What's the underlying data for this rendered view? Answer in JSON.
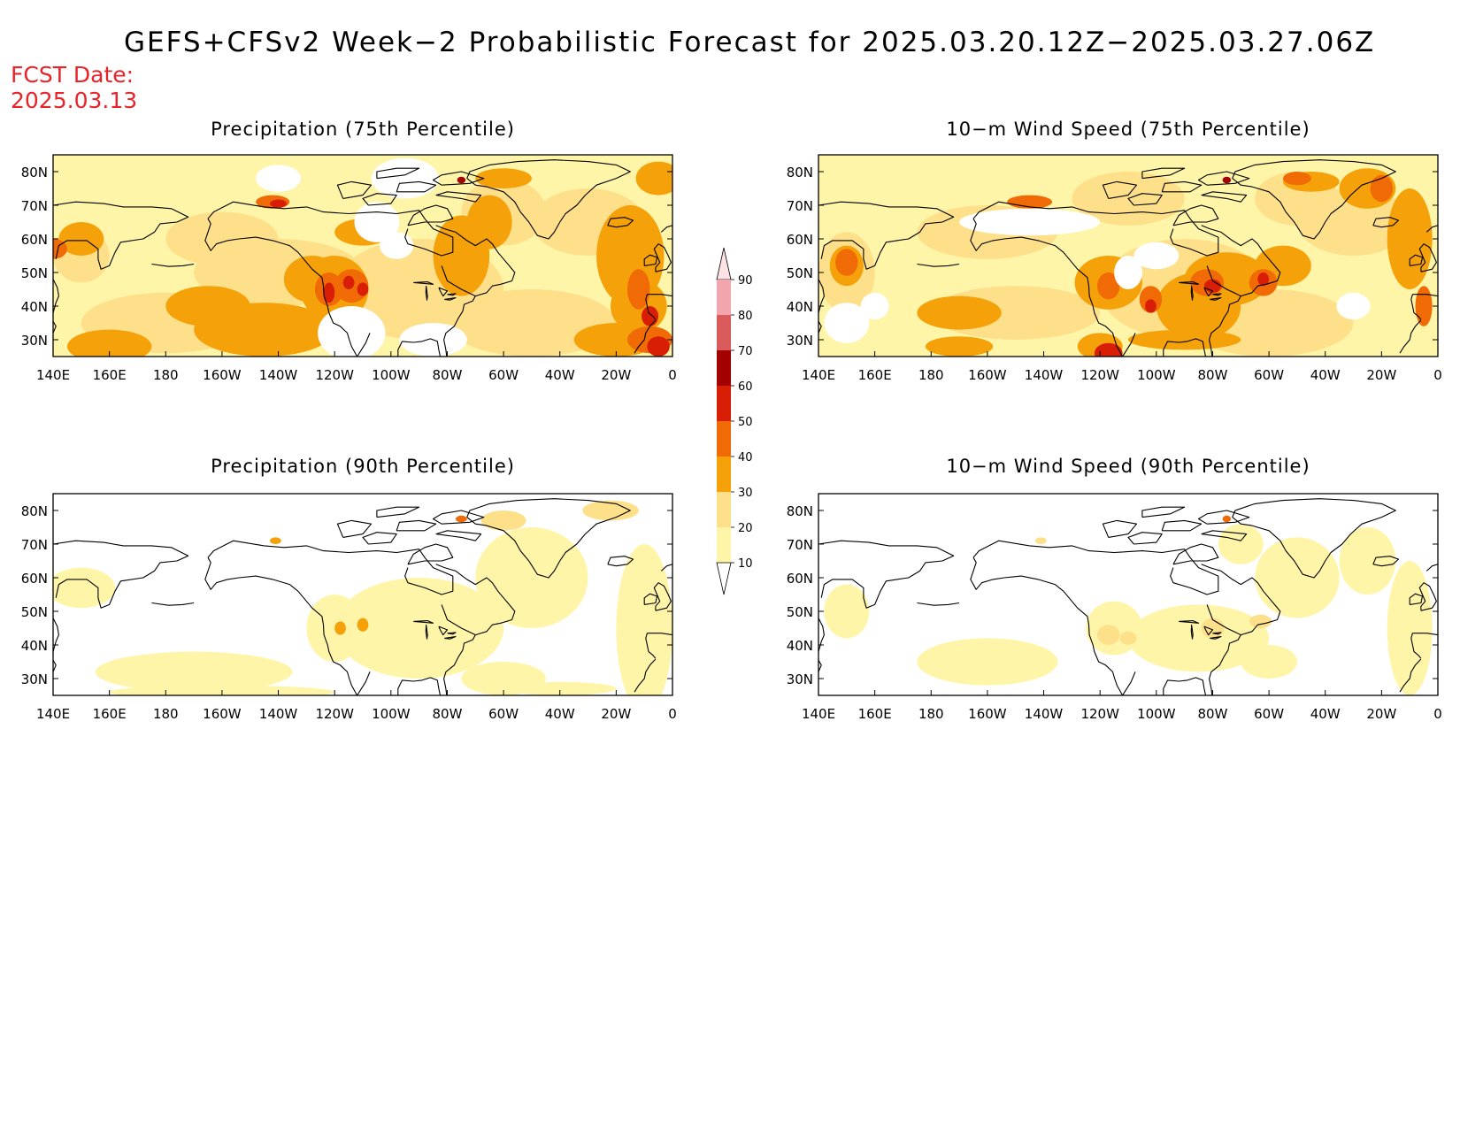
{
  "title": "GEFS+CFSv2 Week−2 Probabilistic Forecast for 2025.03.20.12Z−2025.03.27.06Z",
  "fcst_date": {
    "label": "FCST Date:",
    "value": "2025.03.13"
  },
  "axes": {
    "lon_ticks": [
      "140E",
      "160E",
      "180",
      "160W",
      "140W",
      "120W",
      "100W",
      "80W",
      "60W",
      "40W",
      "20W",
      "0"
    ],
    "lat_ticks": [
      "80N",
      "70N",
      "60N",
      "50N",
      "40N",
      "30N"
    ],
    "lon_range": [
      140,
      360
    ],
    "lat_range": [
      25,
      85
    ]
  },
  "colorbar": {
    "levels": [
      "10",
      "20",
      "30",
      "40",
      "50",
      "60",
      "70",
      "80",
      "90"
    ],
    "colors": [
      "#fff5a8",
      "#fee08a",
      "#f5a10a",
      "#f06a05",
      "#d81e05",
      "#a30000",
      "#d95b5b",
      "#f2a5ac",
      "#fde3e6"
    ]
  },
  "panels": [
    {
      "id": "precip-75",
      "title": "Precipitation (75th Percentile)"
    },
    {
      "id": "wind-75",
      "title": "10−m Wind Speed (75th Percentile)"
    },
    {
      "id": "precip-90",
      "title": "Precipitation (90th Percentile)"
    },
    {
      "id": "wind-90",
      "title": "10−m Wind Speed (90th Percentile)"
    }
  ]
}
